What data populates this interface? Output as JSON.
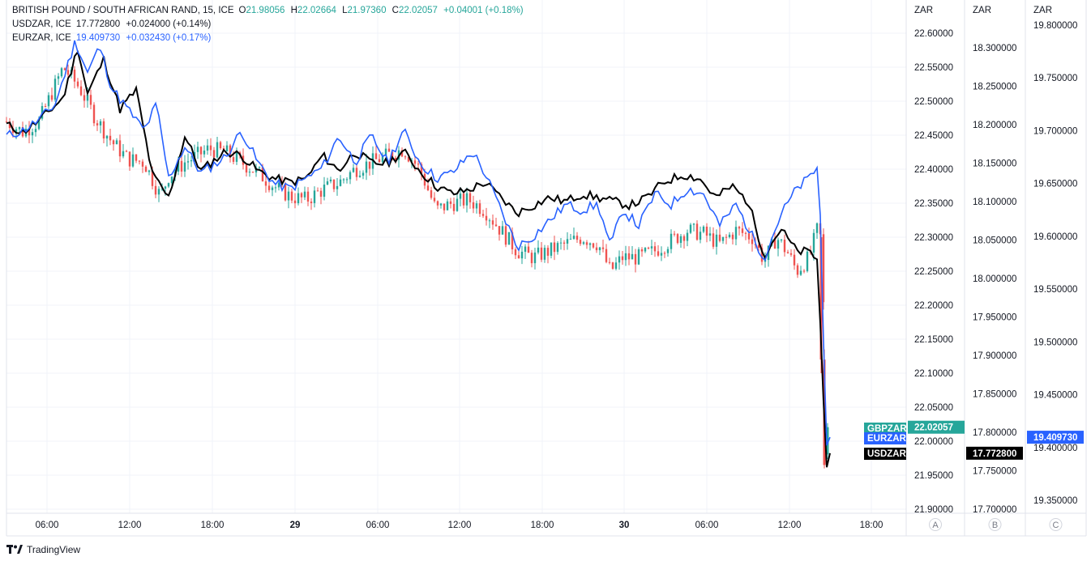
{
  "legend": {
    "main": {
      "symbol": "BRITISH POUND / SOUTH AFRICAN RAND, 15, ICE",
      "o_label": "O",
      "o": "21.98056",
      "h_label": "H",
      "h": "22.02664",
      "l_label": "L",
      "l": "21.97360",
      "c_label": "C",
      "c": "22.02057",
      "change": "+0.04001 (+0.18%)"
    },
    "usd": {
      "symbol": "USDZAR, ICE",
      "value": "17.772800",
      "change": "+0.024000 (+0.14%)"
    },
    "eur": {
      "symbol": "EURZAR, ICE",
      "value": "19.409730",
      "change": "+0.032430 (+0.17%)"
    }
  },
  "footer": {
    "brand": "TradingView",
    "logo_icon": "tradingview-logo-icon"
  },
  "colors": {
    "up": "#26a69a",
    "down": "#ef5350",
    "usd": "#000000",
    "eur": "#2962ff",
    "grid": "#f0f3fa",
    "border": "#e0e3eb"
  },
  "chart_data": {
    "type": "candlestick_with_overlays",
    "interval": "15",
    "time_ticks": [
      "06:00",
      "12:00",
      "18:00",
      "29",
      "06:00",
      "12:00",
      "18:00",
      "30",
      "06:00",
      "12:00",
      "18:00"
    ],
    "axes": [
      {
        "id": "A",
        "unit": "ZAR",
        "ylim": [
          21.885,
          22.628
        ],
        "ticks": [
          "22.60000",
          "22.55000",
          "22.50000",
          "22.45000",
          "22.40000",
          "22.35000",
          "22.30000",
          "22.25000",
          "22.20000",
          "22.15000",
          "22.10000",
          "22.05000",
          "22.00000",
          "21.95000",
          "21.90000"
        ]
      },
      {
        "id": "B",
        "unit": "ZAR",
        "ylim": [
          17.684,
          18.33
        ],
        "ticks": [
          "18.300000",
          "18.250000",
          "18.200000",
          "18.150000",
          "18.100000",
          "18.050000",
          "18.000000",
          "17.950000",
          "17.900000",
          "17.850000",
          "17.800000",
          "17.750000",
          "17.700000"
        ]
      },
      {
        "id": "C",
        "unit": "ZAR",
        "ylim": [
          19.335,
          19.808
        ],
        "ticks": [
          "19.800000",
          "19.750000",
          "19.700000",
          "19.650000",
          "19.600000",
          "19.550000",
          "19.500000",
          "19.450000",
          "19.400000",
          "19.350000"
        ]
      }
    ],
    "last_values": [
      {
        "label": "GBPZAR",
        "value": "22.02057",
        "axis": "A",
        "color": "#26a69a"
      },
      {
        "label": "EURZAR",
        "value": "19.409730",
        "axis": "C",
        "color": "#2962ff"
      },
      {
        "label": "USDZAR",
        "value": "17.772800",
        "axis": "B",
        "color": "#000000"
      }
    ],
    "gbpzar_close_anchors": [
      [
        0,
        22.47
      ],
      [
        20,
        22.455
      ],
      [
        40,
        22.47
      ],
      [
        70,
        22.55
      ],
      [
        90,
        22.52
      ],
      [
        110,
        22.475
      ],
      [
        130,
        22.44
      ],
      [
        150,
        22.415
      ],
      [
        170,
        22.41
      ],
      [
        190,
        22.36
      ],
      [
        200,
        22.39
      ],
      [
        220,
        22.41
      ],
      [
        250,
        22.43
      ],
      [
        270,
        22.425
      ],
      [
        290,
        22.41
      ],
      [
        310,
        22.395
      ],
      [
        330,
        22.375
      ],
      [
        350,
        22.36
      ],
      [
        370,
        22.355
      ],
      [
        390,
        22.37
      ],
      [
        410,
        22.38
      ],
      [
        430,
        22.4
      ],
      [
        450,
        22.41
      ],
      [
        470,
        22.42
      ],
      [
        490,
        22.43
      ],
      [
        510,
        22.4
      ],
      [
        530,
        22.34
      ],
      [
        550,
        22.35
      ],
      [
        570,
        22.355
      ],
      [
        590,
        22.34
      ],
      [
        610,
        22.31
      ],
      [
        630,
        22.28
      ],
      [
        650,
        22.27
      ],
      [
        670,
        22.28
      ],
      [
        690,
        22.29
      ],
      [
        710,
        22.3
      ],
      [
        730,
        22.29
      ],
      [
        745,
        22.25
      ],
      [
        760,
        22.27
      ],
      [
        780,
        22.27
      ],
      [
        800,
        22.28
      ],
      [
        820,
        22.295
      ],
      [
        840,
        22.31
      ],
      [
        860,
        22.305
      ],
      [
        880,
        22.29
      ],
      [
        900,
        22.31
      ],
      [
        920,
        22.3
      ],
      [
        935,
        22.265
      ],
      [
        950,
        22.3
      ],
      [
        965,
        22.275
      ],
      [
        975,
        22.25
      ],
      [
        990,
        22.27
      ],
      [
        1000,
        22.31
      ],
      [
        1004,
        22.3
      ],
      [
        1008,
        22.2
      ],
      [
        1011,
        22.02
      ],
      [
        1016,
        22.02
      ]
    ],
    "usdzar_anchors": [
      [
        0,
        18.2
      ],
      [
        20,
        18.19
      ],
      [
        40,
        18.205
      ],
      [
        70,
        18.235
      ],
      [
        88,
        18.3
      ],
      [
        100,
        18.24
      ],
      [
        120,
        18.285
      ],
      [
        140,
        18.22
      ],
      [
        160,
        18.245
      ],
      [
        180,
        18.135
      ],
      [
        200,
        18.105
      ],
      [
        220,
        18.185
      ],
      [
        240,
        18.14
      ],
      [
        270,
        18.165
      ],
      [
        290,
        18.16
      ],
      [
        310,
        18.14
      ],
      [
        330,
        18.13
      ],
      [
        350,
        18.125
      ],
      [
        370,
        18.13
      ],
      [
        390,
        18.16
      ],
      [
        410,
        18.14
      ],
      [
        430,
        18.165
      ],
      [
        450,
        18.15
      ],
      [
        470,
        18.15
      ],
      [
        490,
        18.165
      ],
      [
        510,
        18.14
      ],
      [
        530,
        18.12
      ],
      [
        550,
        18.11
      ],
      [
        570,
        18.115
      ],
      [
        590,
        18.125
      ],
      [
        610,
        18.105
      ],
      [
        630,
        18.085
      ],
      [
        650,
        18.095
      ],
      [
        670,
        18.105
      ],
      [
        690,
        18.1
      ],
      [
        710,
        18.11
      ],
      [
        730,
        18.105
      ],
      [
        750,
        18.1
      ],
      [
        770,
        18.095
      ],
      [
        790,
        18.105
      ],
      [
        810,
        18.125
      ],
      [
        835,
        18.135
      ],
      [
        855,
        18.13
      ],
      [
        875,
        18.105
      ],
      [
        895,
        18.12
      ],
      [
        915,
        18.1
      ],
      [
        935,
        18.03
      ],
      [
        955,
        18.065
      ],
      [
        975,
        18.035
      ],
      [
        990,
        18.035
      ],
      [
        1000,
        18.025
      ],
      [
        1006,
        17.9
      ],
      [
        1011,
        17.75
      ],
      [
        1016,
        17.7728
      ]
    ],
    "eurzar_anchors": [
      [
        0,
        19.695
      ],
      [
        20,
        19.7
      ],
      [
        40,
        19.71
      ],
      [
        60,
        19.725
      ],
      [
        85,
        19.785
      ],
      [
        100,
        19.755
      ],
      [
        115,
        19.78
      ],
      [
        130,
        19.74
      ],
      [
        150,
        19.72
      ],
      [
        170,
        19.7
      ],
      [
        185,
        19.725
      ],
      [
        200,
        19.655
      ],
      [
        220,
        19.685
      ],
      [
        240,
        19.66
      ],
      [
        270,
        19.675
      ],
      [
        290,
        19.7
      ],
      [
        310,
        19.67
      ],
      [
        330,
        19.65
      ],
      [
        350,
        19.645
      ],
      [
        370,
        19.655
      ],
      [
        390,
        19.665
      ],
      [
        410,
        19.695
      ],
      [
        430,
        19.67
      ],
      [
        450,
        19.695
      ],
      [
        470,
        19.67
      ],
      [
        490,
        19.7
      ],
      [
        510,
        19.67
      ],
      [
        530,
        19.655
      ],
      [
        550,
        19.66
      ],
      [
        575,
        19.68
      ],
      [
        590,
        19.66
      ],
      [
        610,
        19.625
      ],
      [
        630,
        19.59
      ],
      [
        650,
        19.6
      ],
      [
        670,
        19.615
      ],
      [
        690,
        19.63
      ],
      [
        710,
        19.625
      ],
      [
        730,
        19.63
      ],
      [
        745,
        19.59
      ],
      [
        760,
        19.625
      ],
      [
        780,
        19.61
      ],
      [
        800,
        19.64
      ],
      [
        820,
        19.63
      ],
      [
        840,
        19.645
      ],
      [
        860,
        19.64
      ],
      [
        880,
        19.61
      ],
      [
        900,
        19.63
      ],
      [
        920,
        19.6
      ],
      [
        935,
        19.58
      ],
      [
        955,
        19.62
      ],
      [
        975,
        19.645
      ],
      [
        990,
        19.655
      ],
      [
        1000,
        19.665
      ],
      [
        1004,
        19.62
      ],
      [
        1008,
        19.5
      ],
      [
        1011,
        19.4
      ],
      [
        1016,
        19.40973
      ]
    ]
  }
}
